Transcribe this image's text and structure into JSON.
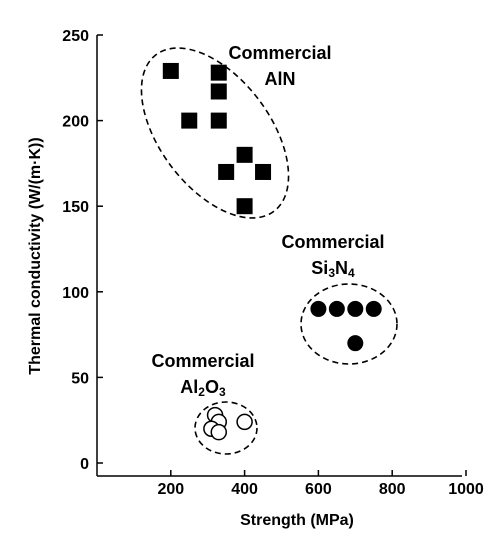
{
  "chart_data": {
    "type": "scatter",
    "xlabel": "Strength (MPa)",
    "ylabel": "Thermal conductivity (W/(m·K))",
    "xlim": [
      0,
      1000
    ],
    "ylim": [
      0,
      250
    ],
    "xticks": [
      "200",
      "400",
      "600",
      "800",
      "1000"
    ],
    "yticks": [
      "0",
      "50",
      "100",
      "150",
      "200",
      "250"
    ],
    "grid": false,
    "series": [
      {
        "name": "Commercial AlN",
        "marker": "square",
        "color": "#000000",
        "points": [
          {
            "x": 200,
            "y": 229
          },
          {
            "x": 330,
            "y": 228
          },
          {
            "x": 330,
            "y": 217
          },
          {
            "x": 250,
            "y": 200
          },
          {
            "x": 330,
            "y": 200
          },
          {
            "x": 400,
            "y": 180
          },
          {
            "x": 350,
            "y": 170
          },
          {
            "x": 450,
            "y": 170
          },
          {
            "x": 400,
            "y": 150
          }
        ]
      },
      {
        "name": "Commercial Si3N4",
        "marker": "filled-circle",
        "color": "#000000",
        "points": [
          {
            "x": 600,
            "y": 90
          },
          {
            "x": 650,
            "y": 90
          },
          {
            "x": 700,
            "y": 90
          },
          {
            "x": 750,
            "y": 90
          },
          {
            "x": 700,
            "y": 70
          }
        ]
      },
      {
        "name": "Commercial Al2O3",
        "marker": "open-circle",
        "color": "#000000",
        "points": [
          {
            "x": 320,
            "y": 28
          },
          {
            "x": 330,
            "y": 24
          },
          {
            "x": 310,
            "y": 20
          },
          {
            "x": 330,
            "y": 18
          },
          {
            "x": 400,
            "y": 24
          }
        ]
      }
    ],
    "annotations": [
      {
        "line1": "Commercial",
        "line2_parts": [
          {
            "t": "AlN"
          }
        ]
      },
      {
        "line1": "Commercial",
        "line2_parts": [
          {
            "t": "Si"
          },
          {
            "t": "3",
            "sub": true
          },
          {
            "t": "N"
          },
          {
            "t": "4",
            "sub": true
          }
        ]
      },
      {
        "line1": "Commercial",
        "line2_parts": [
          {
            "t": "Al"
          },
          {
            "t": "2",
            "sub": true
          },
          {
            "t": "O"
          },
          {
            "t": "3",
            "sub": true
          }
        ]
      }
    ]
  }
}
